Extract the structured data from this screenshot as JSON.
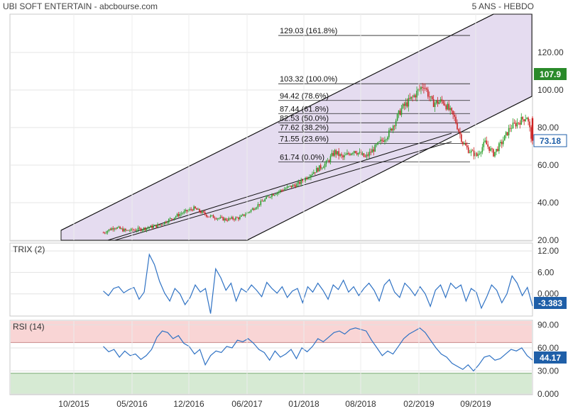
{
  "header": {
    "title": "UBI SOFT ENTERTAIN - abcbourse.com",
    "period": "5 ANS - HEBDO"
  },
  "colors": {
    "up": "#2ea12e",
    "down": "#cc2222",
    "channel_fill": "#e5dcf0",
    "last_badge_price": "#2a8a2a",
    "last_badge_ind": "#1f5fa8",
    "indicator_line": "#2f72c4",
    "rsi_over": "#f9d5d5",
    "rsi_under": "#d6ead3"
  },
  "chart_data": [
    {
      "type": "candlestick",
      "panel": "price",
      "ylim": [
        20,
        140
      ],
      "yticks": [
        "20.00",
        "40.00",
        "60.00",
        "80.00",
        "100.00",
        "120.00"
      ],
      "x_tick_labels": [
        "10/2015",
        "05/2016",
        "12/2016",
        "06/2017",
        "01/2018",
        "08/2018",
        "02/2019",
        "09/2019"
      ],
      "trend": [
        [
          0,
          24
        ],
        [
          8,
          27
        ],
        [
          16,
          25
        ],
        [
          28,
          26
        ],
        [
          40,
          28
        ],
        [
          55,
          34
        ],
        [
          65,
          37
        ],
        [
          75,
          33
        ],
        [
          88,
          31
        ],
        [
          98,
          32
        ],
        [
          106,
          36
        ],
        [
          120,
          44
        ],
        [
          132,
          48
        ],
        [
          140,
          50
        ],
        [
          150,
          56
        ],
        [
          160,
          61
        ],
        [
          166,
          67
        ],
        [
          172,
          64
        ],
        [
          180,
          68
        ],
        [
          188,
          64
        ],
        [
          196,
          70
        ],
        [
          205,
          77
        ],
        [
          214,
          90
        ],
        [
          222,
          96
        ],
        [
          230,
          103
        ],
        [
          236,
          93
        ],
        [
          244,
          94
        ],
        [
          252,
          85
        ],
        [
          258,
          72
        ],
        [
          262,
          68
        ],
        [
          268,
          65
        ],
        [
          274,
          72
        ],
        [
          280,
          66
        ],
        [
          286,
          72
        ],
        [
          292,
          80
        ],
        [
          298,
          83
        ],
        [
          304,
          86
        ],
        [
          308,
          72
        ]
      ],
      "last_price": "107.9",
      "last_close_marker": "73.18",
      "fibonacci": [
        {
          "label": "129.03  (161.8%)",
          "value": 129.03
        },
        {
          "label": "103.32  (100.0%)",
          "value": 103.32
        },
        {
          "label": "94.42  (78.6%)",
          "value": 94.42
        },
        {
          "label": "87.44  (61.8%)",
          "value": 87.44
        },
        {
          "label": "82.53  (50.0%)",
          "value": 82.53
        },
        {
          "label": "77.62  (38.2%)",
          "value": 77.62
        },
        {
          "label": "71.55  (23.6%)",
          "value": 71.55
        },
        {
          "label": "61.74  (0.0%)",
          "value": 61.74
        }
      ]
    },
    {
      "type": "line",
      "panel": "trix",
      "title": "TRIX (2)",
      "ylim": [
        -6,
        14
      ],
      "yticks": [
        "0.000",
        "6.00",
        "12.00"
      ],
      "series": [
        {
          "name": "TRIX (2)",
          "values": [
            0.8,
            -0.5,
            1.5,
            2.0,
            0.3,
            1.2,
            1.8,
            -1.5,
            0.5,
            11.0,
            8.2,
            3.5,
            0.2,
            -2.0,
            1.5,
            0.0,
            -3.0,
            -1.0,
            2.5,
            0.5,
            1.5,
            -5.5,
            7.0,
            4.5,
            1.0,
            3.0,
            -2.0,
            1.5,
            0.5,
            2.5,
            1.0,
            -0.8,
            3.2,
            1.5,
            0.2,
            2.0,
            -1.0,
            0.8,
            1.5,
            -2.5,
            2.0,
            0.5,
            3.0,
            1.0,
            -1.5,
            2.5,
            1.2,
            3.8,
            0.5,
            2.0,
            -0.5,
            1.5,
            3.0,
            1.0,
            -2.0,
            2.5,
            4.0,
            0.5,
            -1.0,
            3.0,
            1.5,
            -0.5,
            2.0,
            0.0,
            -3.5,
            1.0,
            2.5,
            -1.0,
            3.0,
            1.5,
            2.5,
            -2.0,
            1.5,
            0.5,
            -4.0,
            -1.0,
            2.5,
            1.0,
            -2.5,
            0.0,
            5.0,
            3.0,
            -0.5,
            1.8,
            -3.383
          ]
        }
      ],
      "last_value": "-3.383"
    },
    {
      "type": "line",
      "panel": "rsi",
      "title": "RSI (14)",
      "ylim": [
        0,
        95
      ],
      "yticks": [
        "0.000",
        "30.00",
        "60.00",
        "90.00"
      ],
      "overbought": 67,
      "oversold": 27,
      "series": [
        {
          "name": "RSI (14)",
          "values": [
            62,
            55,
            58,
            48,
            56,
            50,
            52,
            45,
            50,
            58,
            74,
            82,
            80,
            72,
            76,
            66,
            62,
            52,
            58,
            38,
            50,
            56,
            54,
            62,
            60,
            70,
            68,
            72,
            66,
            58,
            54,
            44,
            56,
            48,
            52,
            58,
            46,
            60,
            55,
            62,
            72,
            68,
            74,
            80,
            82,
            78,
            84,
            86,
            84,
            82,
            70,
            60,
            50,
            56,
            52,
            62,
            72,
            78,
            82,
            86,
            80,
            70,
            60,
            52,
            48,
            40,
            36,
            32,
            38,
            30,
            38,
            48,
            50,
            44,
            46,
            52,
            58,
            56,
            60,
            50,
            44.17
          ]
        }
      ],
      "last_value": "44.17"
    }
  ]
}
